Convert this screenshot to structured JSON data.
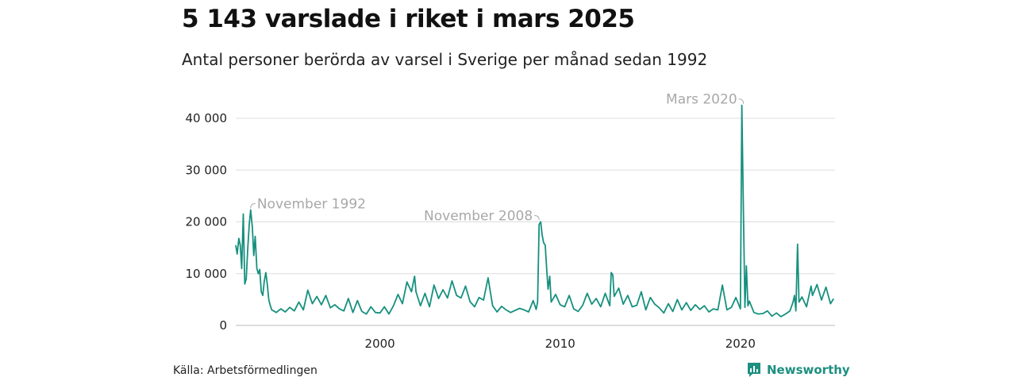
{
  "title": "5 143 varslade i riket i mars 2025",
  "subtitle": "Antal personer berörda av varsel i Sverige per månad sedan 1992",
  "source": "Källa: Arbetsförmedlingen",
  "brand": {
    "name": "Newsworthy",
    "icon": "newsworthy-logo-icon",
    "color": "#1d8f80"
  },
  "chart_data": {
    "type": "line",
    "xlabel": "",
    "ylabel": "",
    "xlim": [
      1992.0,
      2025.25
    ],
    "ylim": [
      0,
      40000
    ],
    "grid": true,
    "line_color": "#16907e",
    "y_ticks": [
      {
        "value": 0,
        "label": "0"
      },
      {
        "value": 10000,
        "label": "10 000"
      },
      {
        "value": 20000,
        "label": "20 000"
      },
      {
        "value": 30000,
        "label": "30 000"
      },
      {
        "value": 40000,
        "label": "40 000"
      }
    ],
    "x_ticks": [
      {
        "value": 2000,
        "label": "2000"
      },
      {
        "value": 2010,
        "label": "2010"
      },
      {
        "value": 2020,
        "label": "2020"
      }
    ],
    "annotations": [
      {
        "text": "November 1992",
        "x": 1992.83,
        "y": 22300,
        "side": "right"
      },
      {
        "text": "November 2008",
        "x": 2008.83,
        "y": 20000,
        "side": "left"
      },
      {
        "text": "Mars 2020",
        "x": 2020.17,
        "y": 42500,
        "side": "left"
      }
    ],
    "series": [
      {
        "x": [
          1992.0,
          1992.08,
          1992.17,
          1992.25,
          1992.33,
          1992.42,
          1992.5,
          1992.58,
          1992.67,
          1992.75,
          1992.83,
          1992.92,
          1993.0,
          1993.08,
          1993.17,
          1993.25,
          1993.33,
          1993.42,
          1993.5,
          1993.58,
          1993.67,
          1993.75,
          1993.83,
          1993.92,
          1994.0,
          1994.25,
          1994.5,
          1994.75,
          1995.0,
          1995.25,
          1995.5,
          1995.75,
          1996.0,
          1996.25,
          1996.5,
          1996.75,
          1997.0,
          1997.25,
          1997.5,
          1997.75,
          1998.0,
          1998.25,
          1998.5,
          1998.75,
          1999.0,
          1999.25,
          1999.5,
          1999.75,
          2000.0,
          2000.25,
          2000.5,
          2000.75,
          2001.0,
          2001.25,
          2001.5,
          2001.75,
          2001.92,
          2002.0,
          2002.25,
          2002.5,
          2002.75,
          2003.0,
          2003.25,
          2003.5,
          2003.75,
          2004.0,
          2004.25,
          2004.5,
          2004.75,
          2005.0,
          2005.25,
          2005.5,
          2005.75,
          2006.0,
          2006.25,
          2006.5,
          2006.75,
          2007.0,
          2007.25,
          2007.5,
          2007.75,
          2008.0,
          2008.25,
          2008.5,
          2008.67,
          2008.75,
          2008.83,
          2008.92,
          2009.0,
          2009.08,
          2009.17,
          2009.25,
          2009.33,
          2009.42,
          2009.5,
          2009.75,
          2010.0,
          2010.25,
          2010.5,
          2010.75,
          2011.0,
          2011.25,
          2011.5,
          2011.75,
          2012.0,
          2012.25,
          2012.5,
          2012.75,
          2012.83,
          2012.92,
          2013.0,
          2013.25,
          2013.5,
          2013.75,
          2014.0,
          2014.25,
          2014.5,
          2014.75,
          2015.0,
          2015.25,
          2015.5,
          2015.75,
          2016.0,
          2016.25,
          2016.5,
          2016.75,
          2017.0,
          2017.25,
          2017.5,
          2017.75,
          2018.0,
          2018.25,
          2018.5,
          2018.75,
          2019.0,
          2019.25,
          2019.5,
          2019.75,
          2020.0,
          2020.08,
          2020.17,
          2020.25,
          2020.33,
          2020.42,
          2020.5,
          2020.75,
          2021.0,
          2021.25,
          2021.5,
          2021.75,
          2022.0,
          2022.25,
          2022.5,
          2022.75,
          2022.92,
          2023.0,
          2023.08,
          2023.17,
          2023.25,
          2023.42,
          2023.67,
          2023.92,
          2024.0,
          2024.25,
          2024.5,
          2024.75,
          2025.0,
          2025.17
        ],
        "y": [
          15500,
          13800,
          16800,
          15500,
          11000,
          21500,
          8000,
          9000,
          15000,
          19500,
          22300,
          19000,
          13500,
          17200,
          11000,
          10000,
          10800,
          6500,
          5800,
          8500,
          10200,
          8000,
          5000,
          3800,
          3000,
          2500,
          3200,
          2600,
          3500,
          2800,
          4500,
          3000,
          6800,
          4200,
          5600,
          4000,
          5800,
          3400,
          4000,
          3200,
          2800,
          5200,
          2500,
          4800,
          2700,
          2200,
          3600,
          2500,
          2400,
          3600,
          2200,
          3800,
          6000,
          4200,
          8400,
          6500,
          9500,
          6500,
          3800,
          6200,
          3600,
          7800,
          5200,
          6900,
          5300,
          8600,
          5800,
          5300,
          7600,
          4600,
          3600,
          5400,
          4900,
          9200,
          3800,
          2600,
          3700,
          3000,
          2500,
          2900,
          3300,
          3000,
          2600,
          4800,
          3100,
          4500,
          19500,
          20000,
          17500,
          16000,
          15500,
          11000,
          7000,
          9500,
          4500,
          6000,
          4000,
          3600,
          5800,
          3200,
          2700,
          3900,
          6200,
          4100,
          5200,
          3600,
          6200,
          3800,
          10200,
          9800,
          5600,
          7200,
          4100,
          5800,
          3600,
          3900,
          6500,
          3000,
          5400,
          4100,
          3400,
          2400,
          4200,
          2700,
          5000,
          3000,
          4400,
          2900,
          4000,
          3100,
          3800,
          2600,
          3200,
          3000,
          7800,
          3000,
          3500,
          5400,
          3200,
          42500,
          22000,
          3500,
          11500,
          3800,
          4700,
          2500,
          2200,
          2300,
          2800,
          1800,
          2400,
          1700,
          2200,
          2800,
          4500,
          5800,
          2800,
          15700,
          4500,
          5500,
          3600,
          7600,
          5800,
          7900,
          4900,
          7400,
          4200,
          5143
        ]
      }
    ]
  }
}
